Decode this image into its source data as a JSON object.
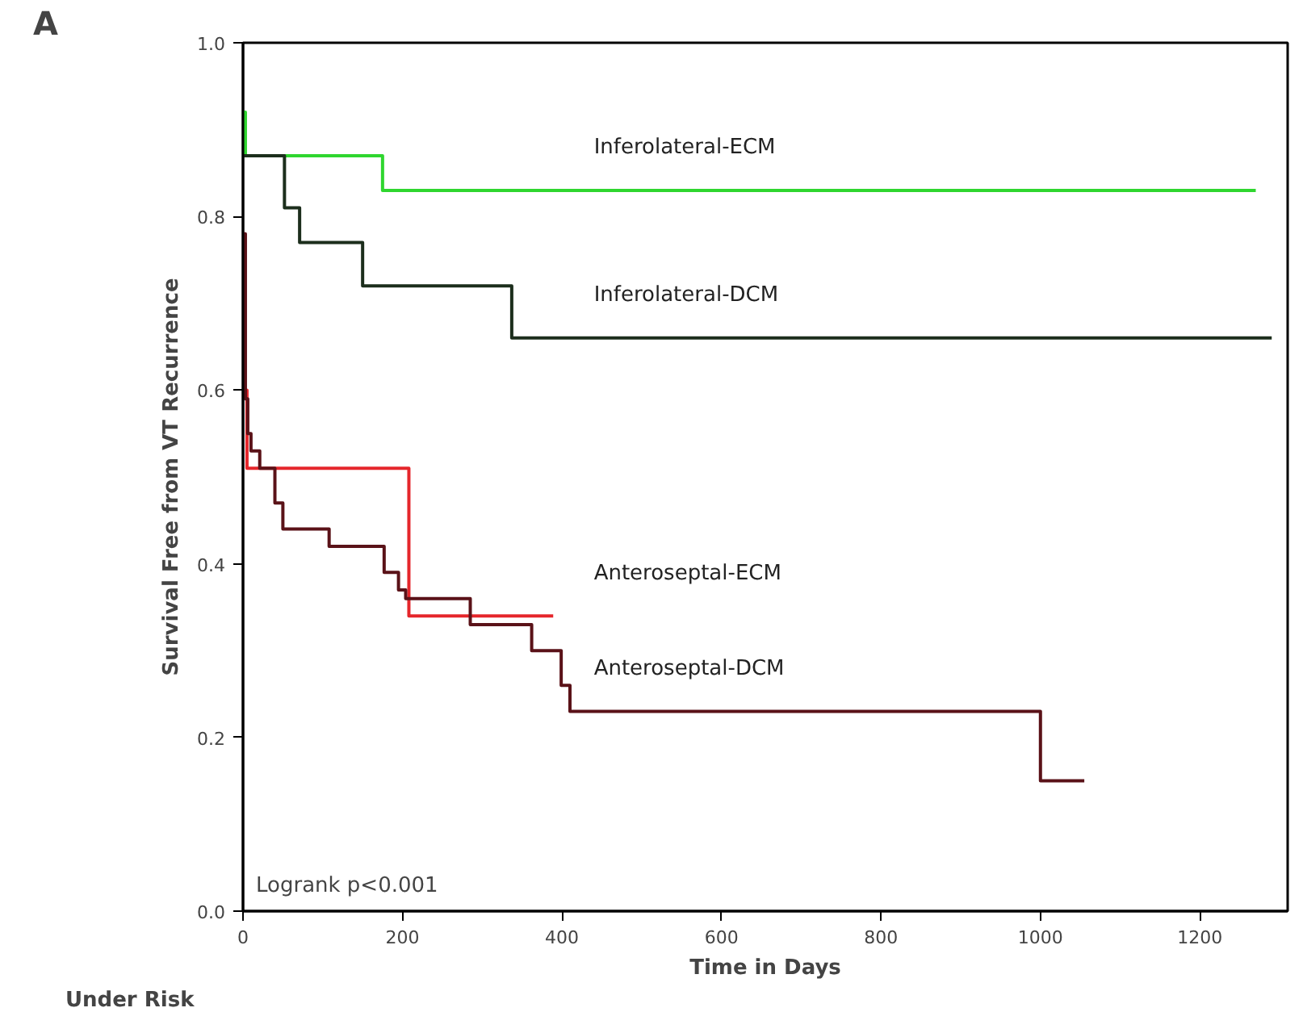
{
  "chart_data": {
    "type": "step",
    "title": "A",
    "xlabel": "Time in Days",
    "ylabel": "Survival Free from VT Recurrence",
    "xlim": [
      0,
      1310
    ],
    "ylim": [
      0,
      1.0
    ],
    "xticks": [
      0,
      200,
      400,
      600,
      800,
      1000,
      1200
    ],
    "yticks": [
      {
        "value": 0,
        "label": "0.0"
      },
      {
        "value": 0.2,
        "label": "0.2"
      },
      {
        "value": 0.4,
        "label": "0.4"
      },
      {
        "value": 0.6,
        "label": "0.6"
      },
      {
        "value": 0.8,
        "label": "0.8"
      },
      {
        "value": 1.0,
        "label": "1.0"
      }
    ],
    "grid": false,
    "marker": "none",
    "line_style": "solid",
    "annotations": [
      "Logrank p<0.001",
      "Under Risk"
    ],
    "series": [
      {
        "name": "Inferolateral-ECM",
        "color": "#2fd62f",
        "x": [
          0,
          3,
          175,
          1270
        ],
        "values": [
          0.92,
          0.87,
          0.83,
          0.83
        ]
      },
      {
        "name": "Inferolateral-DCM",
        "color": "#1c2e1c",
        "x": [
          0,
          52,
          71,
          150,
          337,
          1290
        ],
        "values": [
          0.87,
          0.81,
          0.77,
          0.72,
          0.66,
          0.66
        ]
      },
      {
        "name": "Anteroseptal-ECM",
        "color": "#e5262b",
        "x": [
          0,
          2,
          5,
          208,
          389
        ],
        "values": [
          0.78,
          0.6,
          0.51,
          0.34,
          0.34
        ]
      },
      {
        "name": "Anteroseptal-DCM",
        "color": "#5a1218",
        "x": [
          0,
          3,
          6,
          10,
          21,
          40,
          50,
          108,
          177,
          195,
          204,
          285,
          362,
          399,
          410,
          1000,
          1055
        ],
        "values": [
          0.78,
          0.59,
          0.55,
          0.53,
          0.51,
          0.47,
          0.44,
          0.42,
          0.39,
          0.37,
          0.36,
          0.33,
          0.3,
          0.26,
          0.23,
          0.15,
          0.15
        ]
      }
    ]
  }
}
